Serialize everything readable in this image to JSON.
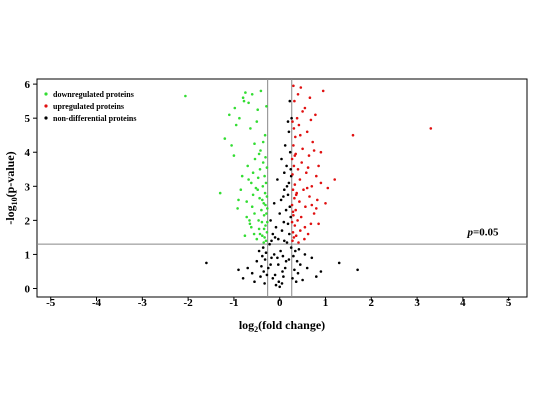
{
  "chart_data": {
    "type": "scatter",
    "title": "",
    "xlabel": {
      "prefix": "log",
      "sub": "2",
      "suffix": "(fold change)"
    },
    "ylabel": {
      "prefix": "-log",
      "sub": "10",
      "suffix": "(p-value)"
    },
    "xlim": [
      -5.3,
      5.4
    ],
    "ylim": [
      -0.25,
      6.15
    ],
    "xticks": [
      -5,
      -4,
      -3,
      -2,
      -1,
      0,
      1,
      2,
      3,
      4,
      5
    ],
    "yticks": [
      0,
      1,
      2,
      3,
      4,
      5,
      6
    ],
    "grid": false,
    "legend_position": "top-left",
    "thresholds": {
      "fc_low": -0.263,
      "fc_high": 0.263,
      "pvalue_line": 1.301
    },
    "annotation": {
      "italic": "p",
      "rest": "=0.05",
      "x": 4.1,
      "y": 1.55
    },
    "series": [
      {
        "name": "downregulated proteins",
        "color": "#33dd33",
        "points": [
          [
            -2.06,
            5.65
          ],
          [
            -1.3,
            2.8
          ],
          [
            -1.2,
            4.4
          ],
          [
            -1.1,
            5.1
          ],
          [
            -1.05,
            4.2
          ],
          [
            -1.0,
            3.9
          ],
          [
            -0.98,
            5.3
          ],
          [
            -0.95,
            4.8
          ],
          [
            -0.92,
            2.35
          ],
          [
            -0.9,
            2.6
          ],
          [
            -0.88,
            5.0
          ],
          [
            -0.85,
            2.9
          ],
          [
            -0.82,
            3.3
          ],
          [
            -0.8,
            5.6
          ],
          [
            -0.78,
            5.5
          ],
          [
            -0.75,
            5.75
          ],
          [
            -0.72,
            2.1
          ],
          [
            -0.7,
            3.6
          ],
          [
            -0.68,
            5.45
          ],
          [
            -0.66,
            2.0
          ],
          [
            -0.65,
            1.9
          ],
          [
            -0.64,
            4.7
          ],
          [
            -0.62,
            3.1
          ],
          [
            -0.6,
            2.4
          ],
          [
            -0.58,
            3.4
          ],
          [
            -0.56,
            1.6
          ],
          [
            -0.55,
            2.2
          ],
          [
            -0.54,
            3.8
          ],
          [
            -0.52,
            2.95
          ],
          [
            -0.5,
            1.45
          ],
          [
            -0.48,
            5.25
          ],
          [
            -0.47,
            3.25
          ],
          [
            -0.46,
            2.0
          ],
          [
            -0.45,
            1.75
          ],
          [
            -0.44,
            2.65
          ],
          [
            -0.43,
            3.5
          ],
          [
            -0.42,
            4.05
          ],
          [
            -0.41,
            5.8
          ],
          [
            -0.4,
            2.3
          ],
          [
            -0.39,
            1.95
          ],
          [
            -0.38,
            1.55
          ],
          [
            -0.37,
            3.0
          ],
          [
            -0.36,
            3.7
          ],
          [
            -0.35,
            2.5
          ],
          [
            -0.35,
            1.35
          ],
          [
            -0.34,
            2.15
          ],
          [
            -0.33,
            1.5
          ],
          [
            -0.33,
            3.3
          ],
          [
            -0.32,
            2.8
          ],
          [
            -0.32,
            4.5
          ],
          [
            -0.31,
            1.85
          ],
          [
            -0.31,
            2.45
          ],
          [
            -0.3,
            3.1
          ],
          [
            -0.3,
            1.4
          ],
          [
            -0.29,
            2.2
          ],
          [
            -0.29,
            5.35
          ],
          [
            -0.28,
            1.65
          ],
          [
            -0.28,
            2.7
          ],
          [
            -0.28,
            3.55
          ],
          [
            -0.27,
            1.95
          ],
          [
            -0.27,
            2.35
          ],
          [
            -0.6,
            5.7
          ],
          [
            -0.55,
            4.25
          ],
          [
            -0.5,
            4.9
          ],
          [
            -0.45,
            3.95
          ],
          [
            -0.58,
            2.75
          ],
          [
            -0.62,
            1.8
          ],
          [
            -0.68,
            3.2
          ],
          [
            -0.72,
            2.55
          ],
          [
            -0.76,
            1.55
          ],
          [
            -0.48,
            2.9
          ],
          [
            -0.43,
            1.6
          ],
          [
            -0.38,
            2.6
          ],
          [
            -0.36,
            4.3
          ],
          [
            -0.34,
            1.75
          ],
          [
            -0.31,
            3.85
          ]
        ]
      },
      {
        "name": "upregulated proteins",
        "color": "#e01010",
        "points": [
          [
            3.3,
            4.7
          ],
          [
            1.6,
            4.5
          ],
          [
            1.2,
            3.2
          ],
          [
            1.05,
            2.95
          ],
          [
            0.95,
            5.8
          ],
          [
            0.9,
            4.0
          ],
          [
            0.85,
            3.6
          ],
          [
            0.82,
            2.6
          ],
          [
            0.8,
            3.3
          ],
          [
            0.78,
            5.1
          ],
          [
            0.75,
            2.2
          ],
          [
            0.72,
            4.3
          ],
          [
            0.7,
            3.0
          ],
          [
            0.68,
            1.9
          ],
          [
            0.66,
            5.6
          ],
          [
            0.65,
            2.7
          ],
          [
            0.64,
            3.9
          ],
          [
            0.62,
            1.6
          ],
          [
            0.6,
            4.6
          ],
          [
            0.58,
            3.4
          ],
          [
            0.56,
            2.4
          ],
          [
            0.55,
            5.3
          ],
          [
            0.54,
            1.45
          ],
          [
            0.52,
            2.9
          ],
          [
            0.5,
            4.1
          ],
          [
            0.48,
            3.7
          ],
          [
            0.47,
            2.1
          ],
          [
            0.46,
            5.9
          ],
          [
            0.45,
            1.7
          ],
          [
            0.44,
            3.2
          ],
          [
            0.43,
            2.55
          ],
          [
            0.42,
            4.8
          ],
          [
            0.41,
            1.35
          ],
          [
            0.4,
            3.5
          ],
          [
            0.39,
            2.0
          ],
          [
            0.38,
            5.0
          ],
          [
            0.37,
            2.8
          ],
          [
            0.36,
            1.55
          ],
          [
            0.35,
            3.95
          ],
          [
            0.35,
            2.3
          ],
          [
            0.34,
            4.45
          ],
          [
            0.33,
            1.85
          ],
          [
            0.33,
            3.05
          ],
          [
            0.32,
            2.65
          ],
          [
            0.32,
            5.5
          ],
          [
            0.31,
            1.5
          ],
          [
            0.31,
            3.6
          ],
          [
            0.3,
            2.15
          ],
          [
            0.3,
            4.2
          ],
          [
            0.29,
            1.65
          ],
          [
            0.29,
            2.9
          ],
          [
            0.28,
            3.35
          ],
          [
            0.28,
            1.4
          ],
          [
            0.28,
            4.9
          ],
          [
            0.27,
            2.45
          ],
          [
            0.27,
            1.95
          ],
          [
            0.27,
            3.8
          ],
          [
            0.3,
            5.95
          ],
          [
            0.4,
            5.7
          ],
          [
            0.5,
            5.2
          ],
          [
            0.6,
            2.95
          ],
          [
            0.7,
            2.45
          ],
          [
            0.75,
            4.05
          ],
          [
            0.85,
            1.9
          ],
          [
            0.9,
            3.1
          ],
          [
            1.0,
            2.5
          ],
          [
            0.55,
            1.8
          ],
          [
            0.45,
            4.5
          ],
          [
            0.36,
            2.75
          ],
          [
            0.33,
            3.9
          ],
          [
            0.31,
            4.7
          ],
          [
            0.29,
            2.25
          ],
          [
            0.62,
            3.55
          ],
          [
            0.68,
            4.95
          ],
          [
            0.8,
            2.35
          ]
        ]
      },
      {
        "name": "non-differential proteins",
        "color": "#000000",
        "points": [
          [
            -1.6,
            0.75
          ],
          [
            -0.9,
            0.55
          ],
          [
            -0.8,
            0.3
          ],
          [
            -0.7,
            0.6
          ],
          [
            -0.6,
            0.45
          ],
          [
            -0.55,
            0.2
          ],
          [
            -0.5,
            0.8
          ],
          [
            -0.45,
            1.1
          ],
          [
            -0.42,
            0.35
          ],
          [
            -0.4,
            0.65
          ],
          [
            -0.38,
            0.95
          ],
          [
            -0.36,
            1.2
          ],
          [
            -0.35,
            0.5
          ],
          [
            -0.33,
            0.15
          ],
          [
            -0.32,
            0.85
          ],
          [
            -0.3,
            1.05
          ],
          [
            -0.28,
            0.4
          ],
          [
            1.7,
            0.55
          ],
          [
            1.3,
            0.75
          ],
          [
            0.9,
            0.5
          ],
          [
            0.8,
            0.35
          ],
          [
            0.7,
            0.9
          ],
          [
            0.6,
            0.6
          ],
          [
            0.55,
            1.0
          ],
          [
            0.5,
            0.25
          ],
          [
            0.45,
            0.7
          ],
          [
            0.42,
            1.15
          ],
          [
            0.4,
            0.45
          ],
          [
            0.38,
            0.8
          ],
          [
            0.36,
            0.2
          ],
          [
            0.34,
            1.1
          ],
          [
            0.32,
            0.55
          ],
          [
            0.3,
            0.95
          ],
          [
            0.28,
            0.3
          ],
          [
            -0.25,
            0.6
          ],
          [
            -0.22,
            1.3
          ],
          [
            -0.2,
            2.0
          ],
          [
            -0.18,
            0.9
          ],
          [
            -0.15,
            1.6
          ],
          [
            -0.12,
            2.5
          ],
          [
            -0.1,
            0.4
          ],
          [
            -0.08,
            1.8
          ],
          [
            -0.05,
            3.2
          ],
          [
            -0.03,
            0.7
          ],
          [
            0.0,
            2.2
          ],
          [
            0.02,
            1.1
          ],
          [
            0.04,
            3.8
          ],
          [
            0.06,
            0.5
          ],
          [
            0.08,
            2.7
          ],
          [
            0.1,
            1.4
          ],
          [
            0.12,
            4.2
          ],
          [
            0.14,
            0.8
          ],
          [
            0.16,
            3.0
          ],
          [
            0.18,
            1.9
          ],
          [
            0.2,
            4.6
          ],
          [
            0.22,
            2.4
          ],
          [
            0.24,
            3.5
          ],
          [
            0.25,
            1.2
          ],
          [
            0.26,
            5.0
          ],
          [
            0.22,
            5.5
          ],
          [
            0.18,
            4.9
          ],
          [
            0.15,
            3.6
          ],
          [
            0.1,
            2.9
          ],
          [
            0.05,
            1.7
          ],
          [
            -0.05,
            0.9
          ],
          [
            -0.1,
            1.5
          ],
          [
            -0.15,
            0.3
          ],
          [
            -0.2,
            0.7
          ],
          [
            0.0,
            0.05
          ],
          [
            0.05,
            0.15
          ],
          [
            -0.02,
            0.2
          ],
          [
            0.08,
            0.35
          ],
          [
            -0.08,
            0.1
          ],
          [
            0.12,
            0.6
          ],
          [
            0.2,
            0.85
          ],
          [
            0.16,
            1.35
          ],
          [
            -0.12,
            1.0
          ],
          [
            -0.18,
            1.4
          ],
          [
            0.24,
            2.1
          ],
          [
            0.2,
            3.1
          ],
          [
            0.14,
            2.3
          ],
          [
            0.09,
            1.95
          ],
          [
            0.03,
            2.6
          ],
          [
            -0.03,
            1.45
          ],
          [
            0.1,
            3.4
          ],
          [
            0.18,
            2.75
          ],
          [
            0.23,
            4.0
          ],
          [
            0.25,
            3.3
          ],
          [
            0.21,
            1.6
          ],
          [
            0.07,
            0.95
          ]
        ]
      }
    ]
  }
}
